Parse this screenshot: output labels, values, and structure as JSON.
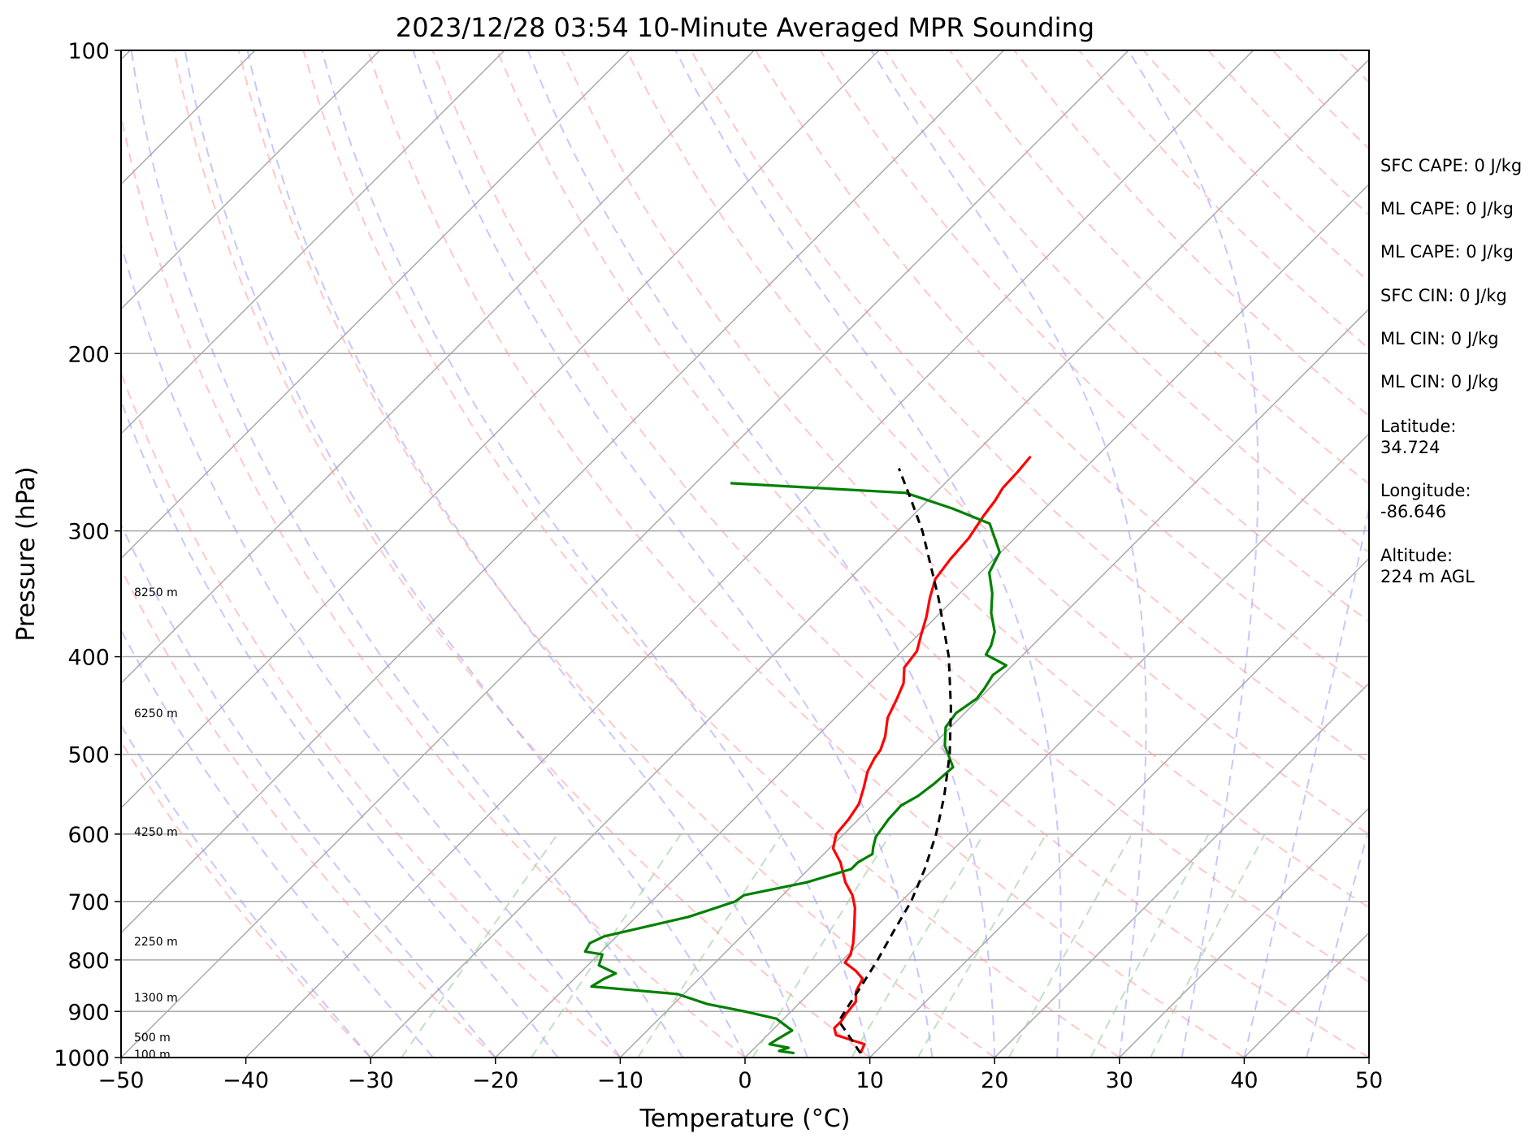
{
  "chart_data": {
    "type": "line",
    "chart_kind": "skew-T log-P sounding",
    "title": "2023/12/28 03:54 10-Minute Averaged MPR Sounding",
    "xlabel": "Temperature (°C)",
    "ylabel": "Pressure (hPa)",
    "xlim": [
      -50,
      50
    ],
    "ylim": [
      1000,
      100
    ],
    "y_scale": "log",
    "grid": true,
    "x_ticks": [
      "−50",
      "−40",
      "−30",
      "−20",
      "−10",
      "0",
      "10",
      "20",
      "30",
      "40",
      "50"
    ],
    "y_ticks": [
      {
        "p": 100,
        "label": "100"
      },
      {
        "p": 200,
        "label": "200"
      },
      {
        "p": 300,
        "label": "300"
      },
      {
        "p": 400,
        "label": "400"
      },
      {
        "p": 500,
        "label": "500"
      },
      {
        "p": 600,
        "label": "600"
      },
      {
        "p": 700,
        "label": "700"
      },
      {
        "p": 800,
        "label": "800"
      },
      {
        "p": 900,
        "label": "900"
      },
      {
        "p": 1000,
        "label": "1000"
      }
    ],
    "height_labels": [
      {
        "p": 345,
        "text": "8250 m"
      },
      {
        "p": 455,
        "text": "6250 m"
      },
      {
        "p": 597,
        "text": "4250 m"
      },
      {
        "p": 767,
        "text": "2250 m"
      },
      {
        "p": 872,
        "text": "1300 m"
      },
      {
        "p": 955,
        "text": "500 m"
      },
      {
        "p": 993,
        "text": "100 m"
      }
    ],
    "series": [
      {
        "key": "temperature",
        "color": "#ff0000",
        "style": "solid",
        "points": [
          [
            990,
            8.9
          ],
          [
            970,
            8.5
          ],
          [
            950,
            5.5
          ],
          [
            935,
            4.8
          ],
          [
            920,
            4.8
          ],
          [
            905,
            4.6
          ],
          [
            880,
            4.4
          ],
          [
            860,
            3.6
          ],
          [
            835,
            3.1
          ],
          [
            820,
            1.9
          ],
          [
            805,
            0.4
          ],
          [
            790,
            0.2
          ],
          [
            770,
            -0.5
          ],
          [
            740,
            -1.8
          ],
          [
            710,
            -3.2
          ],
          [
            690,
            -4.4
          ],
          [
            670,
            -6.0
          ],
          [
            640,
            -8.0
          ],
          [
            620,
            -9.7
          ],
          [
            600,
            -10.6
          ],
          [
            580,
            -10.8
          ],
          [
            560,
            -11.2
          ],
          [
            540,
            -12.1
          ],
          [
            520,
            -13.1
          ],
          [
            505,
            -13.6
          ],
          [
            495,
            -13.8
          ],
          [
            480,
            -14.5
          ],
          [
            460,
            -15.8
          ],
          [
            440,
            -16.6
          ],
          [
            425,
            -17.3
          ],
          [
            410,
            -18.5
          ],
          [
            395,
            -18.8
          ],
          [
            380,
            -19.8
          ],
          [
            365,
            -20.8
          ],
          [
            350,
            -22.0
          ],
          [
            335,
            -23.1
          ],
          [
            320,
            -23.5
          ],
          [
            305,
            -23.7
          ],
          [
            290,
            -24.3
          ],
          [
            280,
            -24.6
          ],
          [
            272,
            -25.0
          ],
          [
            262,
            -25.1
          ],
          [
            253,
            -25.3
          ]
        ]
      },
      {
        "key": "dewpoint",
        "color": "#008000",
        "style": "solid",
        "points": [
          [
            990,
            3.6
          ],
          [
            985,
            2.2
          ],
          [
            978,
            2.7
          ],
          [
            970,
            0.9
          ],
          [
            960,
            1.1
          ],
          [
            940,
            1.6
          ],
          [
            915,
            -0.6
          ],
          [
            900,
            -3.7
          ],
          [
            885,
            -7.3
          ],
          [
            865,
            -10.5
          ],
          [
            850,
            -18.0
          ],
          [
            835,
            -17.6
          ],
          [
            825,
            -17.1
          ],
          [
            810,
            -19.1
          ],
          [
            790,
            -19.7
          ],
          [
            785,
            -21.3
          ],
          [
            770,
            -21.6
          ],
          [
            758,
            -21.0
          ],
          [
            725,
            -15.8
          ],
          [
            700,
            -13.3
          ],
          [
            690,
            -13.1
          ],
          [
            670,
            -9.1
          ],
          [
            650,
            -6.6
          ],
          [
            640,
            -6.6
          ],
          [
            628,
            -6.1
          ],
          [
            618,
            -6.6
          ],
          [
            604,
            -7.2
          ],
          [
            580,
            -7.6
          ],
          [
            562,
            -7.7
          ],
          [
            550,
            -7.1
          ],
          [
            535,
            -6.8
          ],
          [
            515,
            -6.6
          ],
          [
            490,
            -9.0
          ],
          [
            470,
            -10.4
          ],
          [
            455,
            -10.7
          ],
          [
            440,
            -10.2
          ],
          [
            430,
            -10.4
          ],
          [
            417,
            -10.8
          ],
          [
            408,
            -10.5
          ],
          [
            398,
            -13.0
          ],
          [
            390,
            -13.3
          ],
          [
            378,
            -14.1
          ],
          [
            362,
            -15.9
          ],
          [
            346,
            -17.4
          ],
          [
            330,
            -19.3
          ],
          [
            315,
            -20.1
          ],
          [
            295,
            -23.2
          ],
          [
            285,
            -27.4
          ],
          [
            275,
            -32.4
          ],
          [
            269,
            -47.2
          ]
        ]
      },
      {
        "key": "parcel",
        "color": "#000000",
        "style": "dashed",
        "points": [
          [
            990,
            8.9
          ],
          [
            965,
            7.4
          ],
          [
            920,
            4.6
          ],
          [
            900,
            4.3
          ],
          [
            850,
            3.6
          ],
          [
            800,
            2.8
          ],
          [
            750,
            1.8
          ],
          [
            700,
            0.8
          ],
          [
            650,
            -0.7
          ],
          [
            600,
            -2.6
          ],
          [
            550,
            -5.0
          ],
          [
            500,
            -7.9
          ],
          [
            450,
            -11.5
          ],
          [
            400,
            -15.8
          ],
          [
            350,
            -21.3
          ],
          [
            300,
            -28.0
          ],
          [
            280,
            -31.3
          ],
          [
            260,
            -34.9
          ]
        ]
      }
    ],
    "isotherm_color": "#a9a9a9",
    "dry_adiabat_color": "#ff9999",
    "moist_adiabat_color": "#9999ff",
    "mixing_ratio_color": "#99cc99",
    "info": [
      "SFC CAPE: 0 J/kg",
      "ML CAPE: 0 J/kg",
      "ML CAPE: 0 J/kg",
      "SFC CIN: 0 J/kg",
      "ML CIN: 0 J/kg",
      "ML CIN: 0 J/kg",
      "Latitude:",
      "34.724",
      "Longitude:",
      "-86.646",
      "Altitude:",
      "224 m AGL"
    ]
  }
}
